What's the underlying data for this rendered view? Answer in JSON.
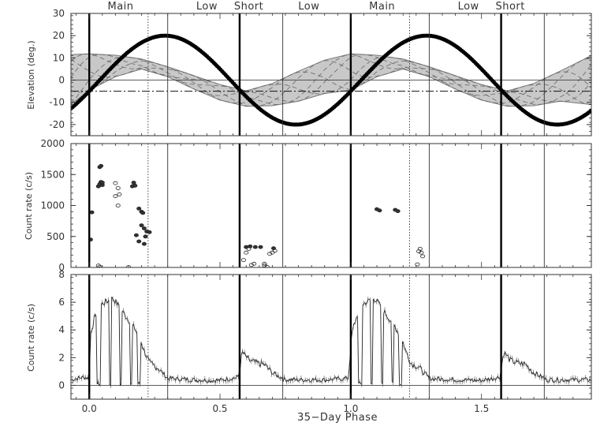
{
  "chart_data": [
    {
      "type": "line",
      "panel": "top",
      "ylabel": "Elevation (deg.)",
      "xlim": [
        -0.07,
        1.92
      ],
      "ylim": [
        -25,
        30
      ],
      "yticks": [
        "30",
        "20",
        "10",
        "0",
        "-10",
        "-20"
      ],
      "ytick_values": [
        30,
        20,
        10,
        0,
        -10,
        -20
      ],
      "band": {
        "description_levels": "shaded elevation band, sinusoidal, period 1.0",
        "upper": [
          [
            -0.07,
            11.5
          ],
          [
            0.0,
            11.8
          ],
          [
            0.1,
            11.2
          ],
          [
            0.2,
            9.5
          ],
          [
            0.3,
            6.0
          ],
          [
            0.4,
            2.0
          ],
          [
            0.5,
            -2.0
          ],
          [
            0.6,
            -4.8
          ],
          [
            0.7,
            -1.5
          ],
          [
            0.8,
            4.0
          ],
          [
            0.9,
            9.0
          ],
          [
            1.0,
            11.8
          ],
          [
            1.1,
            11.2
          ],
          [
            1.2,
            9.5
          ],
          [
            1.3,
            6.0
          ],
          [
            1.4,
            2.0
          ],
          [
            1.5,
            -2.0
          ],
          [
            1.6,
            -4.8
          ],
          [
            1.7,
            -1.5
          ],
          [
            1.8,
            4.0
          ],
          [
            1.92,
            11.0
          ]
        ],
        "lower": [
          [
            -0.07,
            -11.0
          ],
          [
            0.0,
            -4.5
          ],
          [
            0.1,
            1.5
          ],
          [
            0.2,
            5.0
          ],
          [
            0.3,
            1.5
          ],
          [
            0.4,
            -4.0
          ],
          [
            0.5,
            -9.0
          ],
          [
            0.6,
            -11.8
          ],
          [
            0.7,
            -11.5
          ],
          [
            0.8,
            -9.5
          ],
          [
            0.9,
            -6.0
          ],
          [
            1.0,
            -4.5
          ],
          [
            1.1,
            1.5
          ],
          [
            1.2,
            5.0
          ],
          [
            1.3,
            1.5
          ],
          [
            1.4,
            -4.0
          ],
          [
            1.5,
            -9.0
          ],
          [
            1.6,
            -11.8
          ],
          [
            1.7,
            -11.5
          ],
          [
            1.8,
            -9.5
          ],
          [
            1.92,
            -11.0
          ]
        ]
      },
      "series": [
        {
          "style": "thick-dotted",
          "amplitude": 20,
          "phase_of_max": 0.29,
          "period": 1.0
        },
        {
          "style": "dash-dot",
          "constant": -5
        }
      ]
    },
    {
      "type": "scatter",
      "panel": "middle",
      "ylabel": "Count rate (c/s)",
      "xlim": [
        -0.07,
        1.92
      ],
      "ylim": [
        0,
        2000
      ],
      "yticks": [
        "2000",
        "1500",
        "1000",
        "500",
        "0"
      ],
      "ytick_values": [
        2000,
        1500,
        1000,
        500,
        0
      ],
      "points": [
        [
          0.005,
          450
        ],
        [
          0.01,
          890
        ],
        [
          0.035,
          1310
        ],
        [
          0.04,
          1345
        ],
        [
          0.045,
          1380
        ],
        [
          0.04,
          1620
        ],
        [
          0.045,
          1640
        ],
        [
          0.05,
          1330
        ],
        [
          0.05,
          1370
        ],
        [
          0.1,
          1150
        ],
        [
          0.1,
          1360
        ],
        [
          0.11,
          1000
        ],
        [
          0.11,
          1280
        ],
        [
          0.115,
          1180
        ],
        [
          0.165,
          1310
        ],
        [
          0.17,
          1370
        ],
        [
          0.175,
          1320
        ],
        [
          0.19,
          950
        ],
        [
          0.2,
          900
        ],
        [
          0.205,
          880
        ],
        [
          0.21,
          630
        ],
        [
          0.22,
          580
        ],
        [
          0.23,
          570
        ],
        [
          0.215,
          500
        ],
        [
          0.2,
          680
        ],
        [
          0.18,
          520
        ],
        [
          0.21,
          380
        ],
        [
          0.19,
          420
        ],
        [
          0.035,
          30
        ],
        [
          0.04,
          10
        ],
        [
          0.15,
          5
        ],
        [
          0.59,
          120
        ],
        [
          0.6,
          240
        ],
        [
          0.6,
          330
        ],
        [
          0.61,
          300
        ],
        [
          0.615,
          340
        ],
        [
          0.62,
          40
        ],
        [
          0.63,
          60
        ],
        [
          0.635,
          330
        ],
        [
          0.655,
          330
        ],
        [
          0.67,
          60
        ],
        [
          0.67,
          30
        ],
        [
          0.68,
          10
        ],
        [
          0.69,
          220
        ],
        [
          0.7,
          240
        ],
        [
          0.71,
          270
        ],
        [
          0.705,
          310
        ],
        [
          1.1,
          940
        ],
        [
          1.11,
          920
        ],
        [
          1.17,
          930
        ],
        [
          1.18,
          910
        ],
        [
          1.255,
          50
        ],
        [
          1.26,
          260
        ],
        [
          1.265,
          300
        ],
        [
          1.27,
          240
        ],
        [
          1.275,
          180
        ]
      ]
    },
    {
      "type": "line",
      "panel": "bottom",
      "ylabel": "Count rate (c/s)",
      "xlabel": "35−Day Phase",
      "xlim": [
        -0.07,
        1.92
      ],
      "ylim": [
        -1,
        8
      ],
      "yticks": [
        "8",
        "6",
        "4",
        "2",
        "0"
      ],
      "ytick_values": [
        8,
        6,
        4,
        2,
        0
      ],
      "xticks": [
        "0.0",
        "0.5",
        "1.0",
        "1.5"
      ],
      "xtick_values": [
        0.0,
        0.5,
        1.0,
        1.5
      ],
      "envelope": [
        [
          -0.07,
          0.4
        ],
        [
          -0.02,
          0.6
        ],
        [
          0.0,
          0.5
        ],
        [
          0.005,
          3.8
        ],
        [
          0.02,
          4.8
        ],
        [
          0.04,
          5.8
        ],
        [
          0.07,
          6.1
        ],
        [
          0.09,
          6.3
        ],
        [
          0.11,
          5.8
        ],
        [
          0.14,
          5.0
        ],
        [
          0.17,
          4.2
        ],
        [
          0.19,
          3.6
        ],
        [
          0.21,
          2.5
        ],
        [
          0.23,
          1.6
        ],
        [
          0.26,
          1.3
        ],
        [
          0.3,
          0.5
        ],
        [
          0.4,
          0.4
        ],
        [
          0.5,
          0.35
        ],
        [
          0.57,
          0.6
        ],
        [
          0.585,
          2.4
        ],
        [
          0.61,
          1.8
        ],
        [
          0.64,
          1.6
        ],
        [
          0.67,
          1.5
        ],
        [
          0.7,
          0.9
        ],
        [
          0.75,
          0.4
        ],
        [
          0.9,
          0.4
        ],
        [
          0.99,
          0.5
        ],
        [
          1.005,
          3.8
        ],
        [
          1.02,
          4.8
        ],
        [
          1.04,
          5.8
        ],
        [
          1.07,
          6.1
        ],
        [
          1.09,
          6.3
        ],
        [
          1.11,
          5.8
        ],
        [
          1.14,
          5.0
        ],
        [
          1.17,
          4.2
        ],
        [
          1.19,
          3.6
        ],
        [
          1.21,
          2.5
        ],
        [
          1.23,
          1.6
        ],
        [
          1.26,
          1.3
        ],
        [
          1.3,
          0.5
        ],
        [
          1.4,
          0.4
        ],
        [
          1.5,
          0.35
        ],
        [
          1.57,
          0.6
        ],
        [
          1.585,
          2.4
        ],
        [
          1.61,
          1.8
        ],
        [
          1.64,
          1.6
        ],
        [
          1.67,
          1.5
        ],
        [
          1.7,
          0.9
        ],
        [
          1.75,
          0.4
        ],
        [
          1.92,
          0.4
        ]
      ],
      "dips": [
        [
          0.03,
          0.045
        ],
        [
          0.075,
          0.085
        ],
        [
          0.115,
          0.125
        ],
        [
          0.155,
          0.165
        ],
        [
          0.185,
          0.195
        ],
        [
          1.03,
          1.045
        ],
        [
          1.075,
          1.085
        ],
        [
          1.115,
          1.125
        ],
        [
          1.155,
          1.165
        ],
        [
          1.185,
          1.195
        ]
      ],
      "baseline": 0.0
    }
  ],
  "state_labels": [
    {
      "text": "Main",
      "x": 0.12
    },
    {
      "text": "Low",
      "x": 0.45
    },
    {
      "text": "Short",
      "x": 0.61
    },
    {
      "text": "Low",
      "x": 0.84
    },
    {
      "text": "Main",
      "x": 1.12
    },
    {
      "text": "Low",
      "x": 1.45
    },
    {
      "text": "Short",
      "x": 1.61
    }
  ],
  "boundaries": {
    "thick": [
      0.0,
      0.575,
      1.0,
      1.575
    ],
    "thin": [
      0.3,
      0.74,
      1.3,
      1.74
    ],
    "dotted": [
      0.225,
      1.225
    ]
  }
}
